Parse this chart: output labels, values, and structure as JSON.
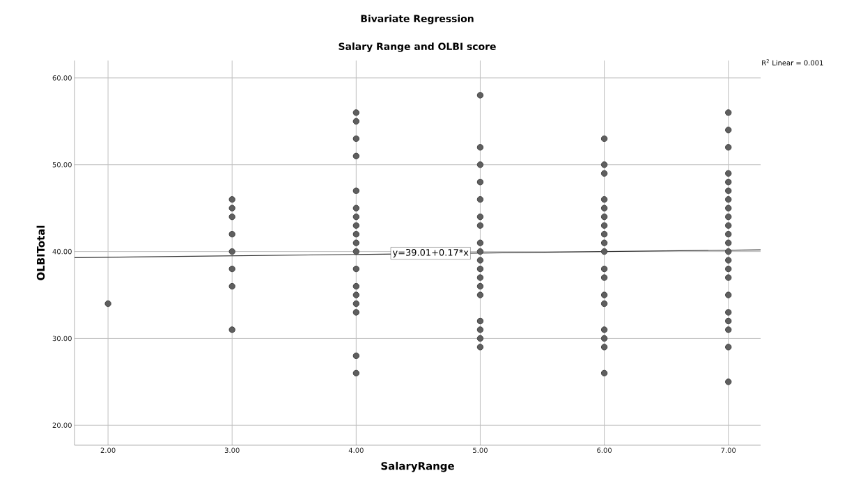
{
  "chart_data": {
    "type": "scatter",
    "title": "Bivariate Regression",
    "subtitle": "Salary Range and OLBI score",
    "xlabel": "SalaryRange",
    "ylabel": "OLBITotal",
    "xlim": [
      1.73,
      7.26
    ],
    "ylim": [
      17.7,
      62.0
    ],
    "xticks": [
      {
        "value": 2,
        "label": "2.00"
      },
      {
        "value": 3,
        "label": "3.00"
      },
      {
        "value": 4,
        "label": "4.00"
      },
      {
        "value": 5,
        "label": "5.00"
      },
      {
        "value": 6,
        "label": "6.00"
      },
      {
        "value": 7,
        "label": "7.00"
      }
    ],
    "yticks": [
      {
        "value": 20,
        "label": "20.00"
      },
      {
        "value": 30,
        "label": "30.00"
      },
      {
        "value": 40,
        "label": "40.00"
      },
      {
        "value": 50,
        "label": "50.00"
      },
      {
        "value": 60,
        "label": "60.00"
      }
    ],
    "grid": true,
    "marker": "circle",
    "series": [
      {
        "color": "#5f5f5f",
        "x": [
          2,
          3,
          3,
          3,
          3,
          3,
          3,
          3,
          3,
          4,
          4,
          4,
          4,
          4,
          4,
          4,
          4,
          4,
          4,
          4,
          4,
          4,
          4,
          4,
          4,
          4,
          4,
          5,
          5,
          5,
          5,
          5,
          5,
          5,
          5,
          5,
          5,
          5,
          5,
          5,
          5,
          5,
          5,
          5,
          5,
          6,
          6,
          6,
          6,
          6,
          6,
          6,
          6,
          6,
          6,
          6,
          6,
          6,
          6,
          6,
          6,
          6,
          6,
          7,
          7,
          7,
          7,
          7,
          7,
          7,
          7,
          7,
          7,
          7,
          7,
          7,
          7,
          7,
          7,
          7,
          7,
          7,
          7,
          7,
          7
        ],
        "values": [
          34,
          46,
          45,
          44,
          42,
          40,
          38,
          36,
          31,
          56,
          55,
          53,
          51,
          47,
          45,
          44,
          43,
          42,
          41,
          40,
          38,
          36,
          35,
          34,
          33,
          28,
          26,
          58,
          52,
          50,
          48,
          46,
          44,
          43,
          41,
          40,
          39,
          38,
          37,
          36,
          35,
          32,
          31,
          30,
          29,
          53,
          50,
          49,
          46,
          45,
          44,
          43,
          42,
          41,
          40,
          38,
          37,
          35,
          34,
          31,
          30,
          29,
          26,
          56,
          54,
          52,
          49,
          48,
          47,
          46,
          45,
          44,
          43,
          42,
          41,
          40,
          39,
          38,
          37,
          35,
          33,
          32,
          31,
          29,
          25
        ]
      },
      {
        "type": "line",
        "marker": "none",
        "color": "#333333",
        "x": [
          1.73,
          7.26
        ],
        "values": [
          39.3,
          40.2
        ]
      }
    ],
    "annotations": [
      {
        "text": "y=39.01+0.17*x",
        "x": 4.6,
        "y": 39.8
      },
      "R$^{2}$ Linear = 0.001"
    ]
  }
}
